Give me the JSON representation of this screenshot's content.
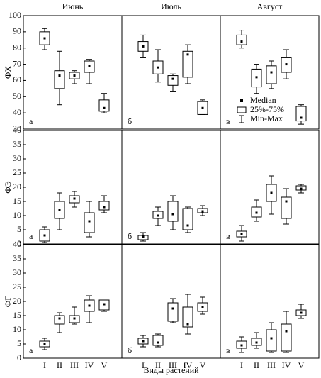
{
  "chart_data": [
    {
      "type": "box",
      "title": "Июнь",
      "ylabel": "ФХ",
      "panel": "а",
      "ylim": [
        30,
        100
      ],
      "yticks": [
        30,
        40,
        50,
        60,
        70,
        80,
        90,
        100
      ],
      "stats": {
        "min": [
          79,
          45,
          58,
          58,
          40
        ],
        "q1": [
          82,
          55,
          61,
          65,
          41
        ],
        "median": [
          86,
          63,
          63,
          69,
          43
        ],
        "q3": [
          90,
          66,
          65,
          72,
          48
        ],
        "max": [
          92,
          78,
          66,
          73,
          52
        ]
      }
    },
    {
      "type": "box",
      "title": "Июль",
      "panel": "б",
      "ylim": [
        30,
        100
      ],
      "stats": {
        "min": [
          74,
          59,
          53,
          58,
          39
        ],
        "q1": [
          78,
          64,
          57,
          62,
          39
        ],
        "median": [
          81,
          68,
          61,
          76,
          43
        ],
        "q3": [
          84,
          72,
          63,
          78,
          47
        ],
        "max": [
          88,
          79,
          64,
          82,
          48
        ]
      }
    },
    {
      "type": "box",
      "title": "Август",
      "panel": "в",
      "ylim": [
        30,
        100
      ],
      "legend": {
        "median": "Median",
        "box": "25%-75%",
        "whisker": "Min-Max"
      },
      "stats": {
        "min": [
          80,
          52,
          55,
          61,
          33
        ],
        "q1": [
          82,
          56,
          58,
          65,
          35
        ],
        "median": [
          84,
          62,
          65,
          70,
          37
        ],
        "q3": [
          88,
          67,
          69,
          74,
          44
        ],
        "max": [
          91,
          70,
          72,
          79,
          45
        ]
      }
    },
    {
      "type": "box",
      "ylabel": "ФЭ",
      "panel": "а",
      "ylim": [
        0,
        40
      ],
      "yticks": [
        0,
        5,
        10,
        15,
        20,
        25,
        30,
        35,
        40
      ],
      "stats": {
        "min": [
          0.5,
          5,
          13,
          2.5,
          11
        ],
        "q1": [
          1,
          9,
          14.5,
          4,
          12
        ],
        "median": [
          3,
          12,
          16,
          8,
          13
        ],
        "q3": [
          5,
          15,
          17,
          11,
          15
        ],
        "max": [
          6,
          18,
          18.5,
          15,
          17
        ]
      }
    },
    {
      "type": "box",
      "panel": "б",
      "ylim": [
        0,
        40
      ],
      "stats": {
        "min": [
          1,
          6.5,
          5,
          4,
          10
        ],
        "q1": [
          1.5,
          9,
          8,
          5,
          11
        ],
        "median": [
          2.5,
          10,
          10.5,
          6.5,
          11.5
        ],
        "q3": [
          3,
          11.5,
          15,
          12.5,
          12.5
        ],
        "max": [
          4,
          13,
          17,
          13,
          13.5
        ]
      }
    },
    {
      "type": "box",
      "panel": "в",
      "ylim": [
        0,
        40
      ],
      "stats": {
        "min": [
          1,
          8,
          10.5,
          7,
          18
        ],
        "q1": [
          2.5,
          9.5,
          15,
          9,
          19
        ],
        "median": [
          3.5,
          11,
          18,
          15,
          19.5
        ],
        "q3": [
          4.5,
          13,
          21,
          16.5,
          20.5
        ],
        "max": [
          6.5,
          15.5,
          24,
          19.5,
          21
        ]
      }
    },
    {
      "type": "box",
      "ylabel": "ФГ",
      "panel": "а",
      "ylim": [
        0,
        40
      ],
      "yticks": [
        0,
        5,
        10,
        15,
        20,
        25,
        30,
        35,
        40
      ],
      "categories": [
        "I",
        "II",
        "III",
        "IV",
        "V"
      ],
      "stats": {
        "min": [
          3,
          9,
          12,
          12.5,
          16.5
        ],
        "q1": [
          4,
          12,
          12.5,
          16.5,
          17
        ],
        "median": [
          5,
          14,
          14,
          18.5,
          19
        ],
        "q3": [
          6,
          15,
          15,
          20.5,
          20.5
        ],
        "max": [
          7,
          16,
          18,
          22,
          20.5
        ]
      }
    },
    {
      "type": "box",
      "panel": "б",
      "ylim": [
        0,
        40
      ],
      "xlabel": "Виды растений",
      "categories": [
        "I",
        "II",
        "III",
        "IV",
        "V"
      ],
      "stats": {
        "min": [
          4,
          4,
          12.5,
          8.5,
          15.5
        ],
        "q1": [
          5,
          4.5,
          13,
          11,
          16.5
        ],
        "median": [
          6,
          5.5,
          17.5,
          12,
          18
        ],
        "q3": [
          7,
          8,
          19.5,
          18,
          19.5
        ],
        "max": [
          8,
          8.5,
          21,
          22.5,
          21.5
        ]
      }
    },
    {
      "type": "box",
      "panel": "в",
      "ylim": [
        0,
        40
      ],
      "categories": [
        "I",
        "II",
        "III",
        "IV",
        "V"
      ],
      "stats": {
        "min": [
          2,
          3.5,
          2,
          2,
          14
        ],
        "q1": [
          3.5,
          4.5,
          2.5,
          2.5,
          15
        ],
        "median": [
          4.5,
          5.5,
          7,
          9.5,
          16
        ],
        "q3": [
          6,
          7,
          10,
          12,
          17
        ],
        "max": [
          7.5,
          9,
          12.5,
          16.5,
          19
        ]
      }
    }
  ]
}
